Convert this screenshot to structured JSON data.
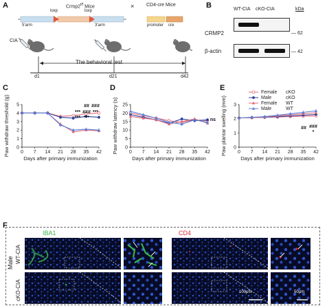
{
  "panel_letters": [
    "A",
    "B",
    "C",
    "D",
    "E",
    "F"
  ],
  "panel_a": {
    "mice_left_title": "Crmp2",
    "mice_left_sup": "f/f",
    "mice_left_title_end": " Mice",
    "times": "×",
    "mice_right_title": "CD4-cre Mice",
    "loxp_left": "loxp",
    "loxp_right": "loxp",
    "arm5": "5'arm",
    "arm3": "3'arm",
    "promoter": "promoter",
    "cre": "cre",
    "cia": "CIA",
    "behavior": "The behavioral test",
    "d1": "d1",
    "d21": "d21",
    "d42": "d42",
    "colors": {
      "arm_blue": "#c9dff0",
      "arm_orange": "#f2c9a8",
      "loxp": "#e05a3a",
      "promoter": "#f6d58c",
      "cre": "#e8a66b"
    }
  },
  "panel_b": {
    "col1": "WT-CIA",
    "col2": "cKO-CIA",
    "unit": "kDa",
    "row1": "CRMP2",
    "row2": "β-actin",
    "mw1": "62",
    "mw2": "42"
  },
  "legend": {
    "entries": [
      {
        "sex": "Female",
        "group": "cKO",
        "color": "#e06a78"
      },
      {
        "sex": "Male",
        "group": "cKO",
        "color": "#2b3f9a"
      },
      {
        "sex": "Female",
        "group": "WT",
        "color": "#e06a78"
      },
      {
        "sex": "Male",
        "group": "WT",
        "color": "#5a7fd6"
      }
    ]
  },
  "chart_data": [
    {
      "type": "line",
      "ylabel": "Paw withdraw threshold (g)",
      "xlabel": "Days after primary immunization",
      "x": [
        0,
        7,
        14,
        21,
        28,
        35,
        42
      ],
      "ylim": [
        0,
        5
      ],
      "yticks": [
        "0",
        "1",
        "2",
        "3",
        "4",
        "5"
      ],
      "xticks": [
        "0",
        "7",
        "14",
        "21",
        "28",
        "35",
        "42"
      ],
      "annotations": [
        "##",
        "###",
        "###",
        "***",
        "***",
        "***"
      ],
      "annotations_row2": [
        "***",
        "***"
      ],
      "series": [
        {
          "name": "Female cKO",
          "values": [
            4.0,
            4.0,
            4.0,
            3.6,
            3.7,
            3.9,
            4.0
          ],
          "color": "#e06a78",
          "marker": "circle-open"
        },
        {
          "name": "Male cKO",
          "values": [
            4.0,
            4.0,
            4.0,
            3.5,
            3.4,
            3.6,
            3.5
          ],
          "color": "#2b3f9a",
          "marker": "circle"
        },
        {
          "name": "Female WT",
          "values": [
            4.0,
            4.0,
            4.0,
            2.7,
            1.8,
            2.0,
            1.9
          ],
          "color": "#e06a78",
          "marker": "triangle"
        },
        {
          "name": "Male WT",
          "values": [
            4.0,
            4.0,
            4.0,
            2.6,
            2.0,
            2.1,
            2.0
          ],
          "color": "#5a7fd6",
          "marker": "triangle"
        }
      ]
    },
    {
      "type": "line",
      "ylabel": "Paw withdraw latency (s)",
      "xlabel": "Days after primary immunization",
      "x": [
        0,
        7,
        14,
        21,
        28,
        35,
        42
      ],
      "ylim": [
        0,
        25
      ],
      "yticks": [
        "0",
        "5",
        "10",
        "15",
        "20",
        "25"
      ],
      "xticks": [
        "0",
        "7",
        "14",
        "21",
        "28",
        "35",
        "42"
      ],
      "annotations": [
        "ns"
      ],
      "series": [
        {
          "name": "Female cKO",
          "values": [
            20.0,
            18.5,
            17.0,
            15.5,
            14.5,
            16.0,
            15.5
          ],
          "color": "#e06a78",
          "marker": "circle-open"
        },
        {
          "name": "Male cKO",
          "values": [
            19.0,
            17.5,
            16.0,
            14.0,
            16.5,
            15.5,
            16.0
          ],
          "color": "#2b3f9a",
          "marker": "circle"
        },
        {
          "name": "Female WT",
          "values": [
            18.0,
            17.0,
            16.0,
            13.5,
            15.0,
            16.5,
            14.0
          ],
          "color": "#e06a78",
          "marker": "triangle"
        },
        {
          "name": "Male WT",
          "values": [
            21.0,
            19.0,
            17.0,
            14.5,
            13.5,
            16.0,
            14.5
          ],
          "color": "#5a7fd6",
          "marker": "triangle"
        }
      ]
    },
    {
      "type": "line",
      "ylabel": "Paw plantar swelling (mm)",
      "xlabel": "Days after primary immunization",
      "x": [
        0,
        7,
        14,
        21,
        28,
        35,
        42
      ],
      "ylim": [
        0,
        3
      ],
      "yticks": [
        "0",
        "1",
        "2",
        "3"
      ],
      "xticks": [
        "0",
        "7",
        "14",
        "21",
        "28",
        "35",
        "42"
      ],
      "annotations": [
        "##",
        "###",
        "*"
      ],
      "series": [
        {
          "name": "Female cKO",
          "values": [
            2.05,
            2.07,
            2.1,
            2.12,
            2.15,
            2.18,
            2.2
          ],
          "color": "#e06a78",
          "marker": "circle-open"
        },
        {
          "name": "Male cKO",
          "values": [
            2.05,
            2.08,
            2.1,
            2.15,
            2.2,
            2.25,
            2.3
          ],
          "color": "#2b3f9a",
          "marker": "circle"
        },
        {
          "name": "Female WT",
          "values": [
            2.05,
            2.08,
            2.12,
            2.2,
            2.28,
            2.35,
            2.42
          ],
          "color": "#e06a78",
          "marker": "triangle"
        },
        {
          "name": "Male WT",
          "values": [
            2.05,
            2.1,
            2.15,
            2.25,
            2.35,
            2.45,
            2.55
          ],
          "color": "#5a7fd6",
          "marker": "triangle"
        }
      ]
    }
  ],
  "panel_f": {
    "stain_left": "IBA1",
    "stain_right": "CD4",
    "sex_label": "Male",
    "row1_label": "WT-CIA",
    "row2_label": "cKO-CIA",
    "scale1": "100μm",
    "scale2": "50μm",
    "iba1_color": "#3ab34a",
    "cd4_color": "#e02a3a"
  }
}
